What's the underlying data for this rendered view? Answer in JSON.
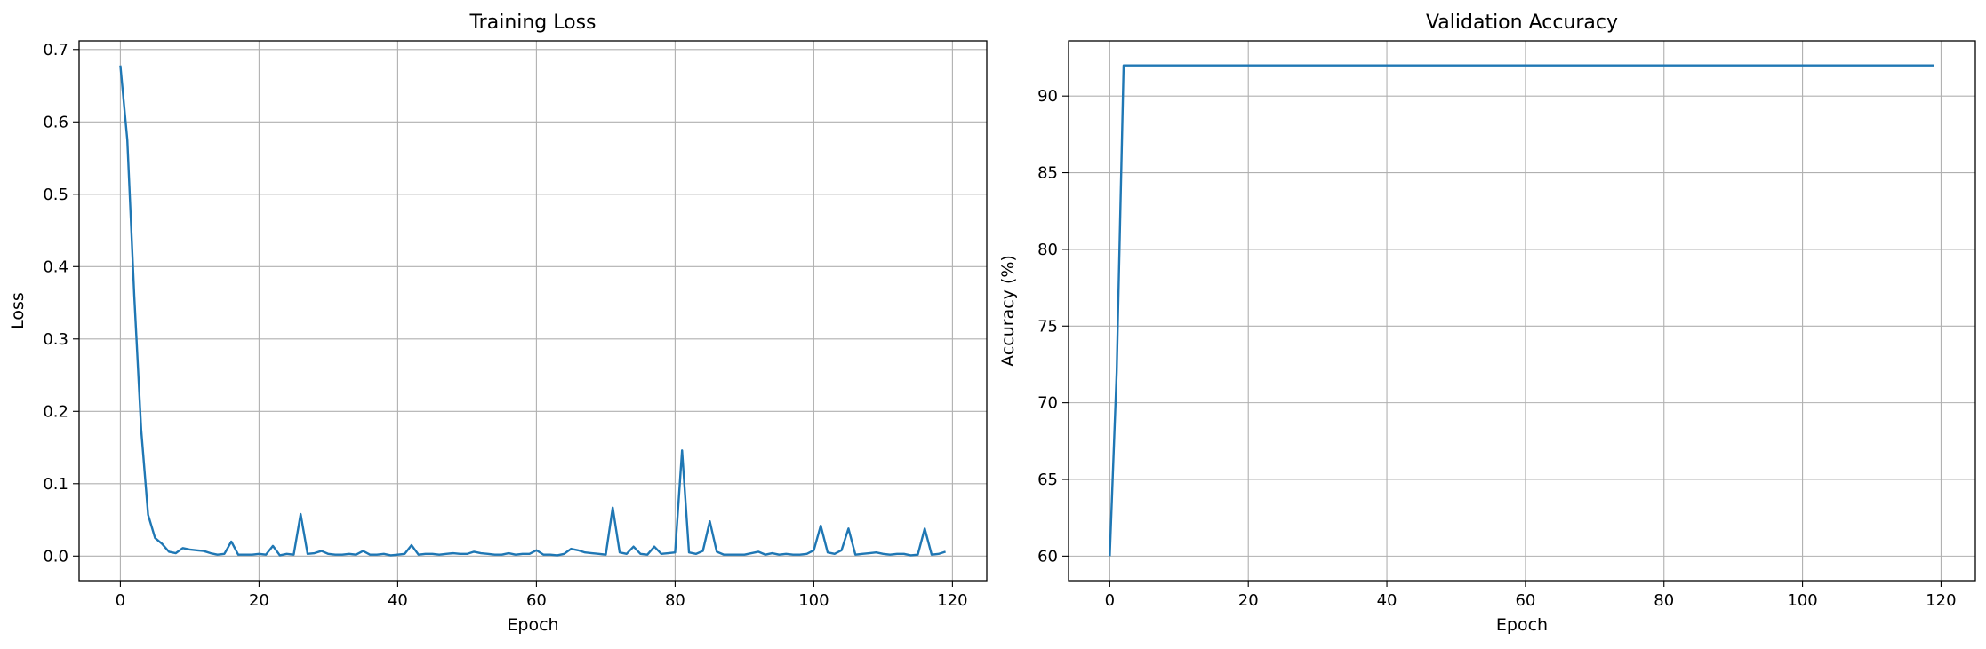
{
  "chart_data": [
    {
      "type": "line",
      "title": "Training Loss",
      "xlabel": "Epoch",
      "ylabel": "Loss",
      "xlim": [
        -5.95,
        124.95
      ],
      "ylim": [
        -0.034,
        0.712
      ],
      "xticks": [
        0,
        20,
        40,
        60,
        80,
        100,
        120
      ],
      "yticks": [
        0.0,
        0.1,
        0.2,
        0.3,
        0.4,
        0.5,
        0.6,
        0.7
      ],
      "ytick_labels": [
        "0.0",
        "0.1",
        "0.2",
        "0.3",
        "0.4",
        "0.5",
        "0.6",
        "0.7"
      ],
      "grid": true,
      "color": "#1f77b4",
      "series": [
        {
          "x": [
            0,
            1,
            2,
            3,
            4,
            5,
            6,
            7,
            8,
            9,
            10,
            11,
            12,
            13,
            14,
            15,
            16,
            17,
            18,
            19,
            20,
            21,
            22,
            23,
            24,
            25,
            26,
            27,
            28,
            29,
            30,
            31,
            32,
            33,
            34,
            35,
            36,
            37,
            38,
            39,
            40,
            41,
            42,
            43,
            44,
            45,
            46,
            47,
            48,
            49,
            50,
            51,
            52,
            53,
            54,
            55,
            56,
            57,
            58,
            59,
            60,
            61,
            62,
            63,
            64,
            65,
            66,
            67,
            68,
            69,
            70,
            71,
            72,
            73,
            74,
            75,
            76,
            77,
            78,
            79,
            80,
            81,
            82,
            83,
            84,
            85,
            86,
            87,
            88,
            89,
            90,
            91,
            92,
            93,
            94,
            95,
            96,
            97,
            98,
            99,
            100,
            101,
            102,
            103,
            104,
            105,
            106,
            107,
            108,
            109,
            110,
            111,
            112,
            113,
            114,
            115,
            116,
            117,
            118,
            119
          ],
          "values": [
            0.678,
            0.575,
            0.36,
            0.175,
            0.057,
            0.025,
            0.017,
            0.006,
            0.004,
            0.011,
            0.009,
            0.008,
            0.007,
            0.004,
            0.002,
            0.003,
            0.02,
            0.002,
            0.002,
            0.002,
            0.003,
            0.002,
            0.014,
            0.001,
            0.003,
            0.002,
            0.058,
            0.003,
            0.004,
            0.007,
            0.003,
            0.002,
            0.002,
            0.003,
            0.002,
            0.007,
            0.002,
            0.002,
            0.003,
            0.001,
            0.002,
            0.003,
            0.015,
            0.002,
            0.003,
            0.003,
            0.002,
            0.003,
            0.004,
            0.003,
            0.003,
            0.006,
            0.004,
            0.003,
            0.002,
            0.002,
            0.004,
            0.002,
            0.003,
            0.003,
            0.008,
            0.002,
            0.002,
            0.001,
            0.003,
            0.01,
            0.008,
            0.005,
            0.004,
            0.003,
            0.002,
            0.067,
            0.005,
            0.003,
            0.013,
            0.003,
            0.002,
            0.013,
            0.003,
            0.004,
            0.005,
            0.146,
            0.005,
            0.003,
            0.007,
            0.048,
            0.006,
            0.002,
            0.002,
            0.002,
            0.002,
            0.004,
            0.006,
            0.002,
            0.004,
            0.002,
            0.003,
            0.002,
            0.002,
            0.003,
            0.008,
            0.042,
            0.005,
            0.003,
            0.008,
            0.038,
            0.002,
            0.003,
            0.004,
            0.005,
            0.003,
            0.002,
            0.003,
            0.003,
            0.001,
            0.002,
            0.038,
            0.002,
            0.003,
            0.006
          ]
        }
      ]
    },
    {
      "type": "line",
      "title": "Validation Accuracy",
      "xlabel": "Epoch",
      "ylabel": "Accuracy (%)",
      "xlim": [
        -5.95,
        124.95
      ],
      "ylim": [
        58.4,
        93.6
      ],
      "xticks": [
        0,
        20,
        40,
        60,
        80,
        100,
        120
      ],
      "yticks": [
        60,
        65,
        70,
        75,
        80,
        85,
        90
      ],
      "ytick_labels": [
        "60",
        "65",
        "70",
        "75",
        "80",
        "85",
        "90"
      ],
      "grid": true,
      "color": "#1f77b4",
      "series": [
        {
          "x": [
            0,
            1,
            2,
            119
          ],
          "values": [
            60,
            72,
            92,
            92
          ]
        }
      ]
    }
  ]
}
